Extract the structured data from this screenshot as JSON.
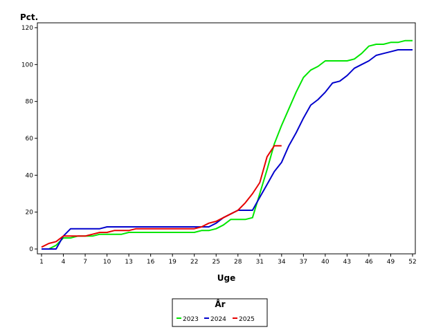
{
  "chart_data": {
    "type": "line",
    "xlabel": "Uge",
    "ylabel": "Pct.",
    "xlim": [
      1,
      52
    ],
    "ylim": [
      0,
      120
    ],
    "x_ticks": [
      1,
      4,
      7,
      10,
      13,
      16,
      19,
      22,
      25,
      28,
      31,
      34,
      37,
      40,
      43,
      46,
      49,
      52
    ],
    "y_ticks": [
      0,
      20,
      40,
      60,
      80,
      100,
      120
    ],
    "legend_title": "År",
    "legend_position": "bottom-center",
    "series": [
      {
        "name": "2023",
        "color": "#00e600",
        "x": [
          1,
          2,
          3,
          4,
          5,
          6,
          7,
          8,
          9,
          10,
          11,
          12,
          13,
          14,
          15,
          16,
          17,
          18,
          19,
          20,
          21,
          22,
          23,
          24,
          25,
          26,
          27,
          28,
          29,
          30,
          31,
          32,
          33,
          34,
          35,
          36,
          37,
          38,
          39,
          40,
          41,
          42,
          43,
          44,
          45,
          46,
          47,
          48,
          49,
          50,
          51,
          52
        ],
        "values": [
          0,
          0,
          2,
          6,
          6,
          7,
          7,
          7,
          8,
          8,
          8,
          8,
          9,
          9,
          9,
          9,
          9,
          9,
          9,
          9,
          9,
          9,
          10,
          10,
          11,
          13,
          16,
          16,
          16,
          17,
          30,
          43,
          57,
          67,
          76,
          85,
          93,
          97,
          99,
          102,
          102,
          102,
          102,
          103,
          106,
          110,
          111,
          111,
          112,
          112,
          113,
          113
        ]
      },
      {
        "name": "2024",
        "color": "#0000cc",
        "x": [
          1,
          2,
          3,
          4,
          5,
          6,
          7,
          8,
          9,
          10,
          11,
          12,
          13,
          14,
          15,
          16,
          17,
          18,
          19,
          20,
          21,
          22,
          23,
          24,
          25,
          26,
          27,
          28,
          29,
          30,
          31,
          32,
          33,
          34,
          35,
          36,
          37,
          38,
          39,
          40,
          41,
          42,
          43,
          44,
          45,
          46,
          47,
          48,
          49,
          50,
          51,
          52
        ],
        "values": [
          0,
          0,
          0,
          7,
          11,
          11,
          11,
          11,
          11,
          12,
          12,
          12,
          12,
          12,
          12,
          12,
          12,
          12,
          12,
          12,
          12,
          12,
          12,
          12,
          14,
          17,
          19,
          21,
          21,
          21,
          28,
          35,
          42,
          47,
          56,
          63,
          71,
          78,
          81,
          85,
          90,
          91,
          94,
          98,
          100,
          102,
          105,
          106,
          107,
          108,
          108,
          108
        ]
      },
      {
        "name": "2025",
        "color": "#e60000",
        "x": [
          1,
          2,
          3,
          4,
          5,
          6,
          7,
          8,
          9,
          10,
          11,
          12,
          13,
          14,
          15,
          16,
          17,
          18,
          19,
          20,
          21,
          22,
          23,
          24,
          25,
          26,
          27,
          28,
          29,
          30,
          31,
          32,
          33,
          34
        ],
        "values": [
          1,
          3,
          4,
          7,
          7,
          7,
          7,
          8,
          9,
          9,
          10,
          10,
          10,
          11,
          11,
          11,
          11,
          11,
          11,
          11,
          11,
          11,
          12,
          14,
          15,
          17,
          19,
          21,
          25,
          30,
          36,
          50,
          56,
          56
        ]
      }
    ]
  }
}
